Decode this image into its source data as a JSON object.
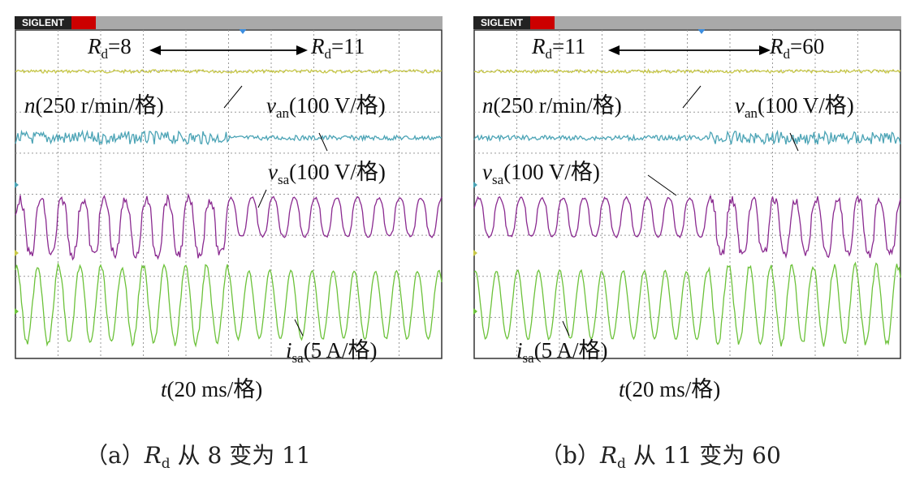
{
  "brand": "SIGLENT",
  "chart_data": [
    {
      "type": "line",
      "panel": "a",
      "caption": {
        "prefix": "（a）",
        "var": "R",
        "sub": "d",
        "text": " 从 8 变为 11"
      },
      "xlabel": {
        "var": "t",
        "text": "(20 ms/格)"
      },
      "annotation": {
        "left": {
          "var": "R",
          "sub": "d",
          "text": "=8"
        },
        "right": {
          "var": "R",
          "sub": "d",
          "text": "=11"
        }
      },
      "x_divisions": 10,
      "y_divisions": 8,
      "grid": true,
      "series": [
        {
          "key": "n",
          "label_var": "n",
          "label_sub": "",
          "label_text": "(250 r/min/格)",
          "color": "#c8c848"
        },
        {
          "key": "van",
          "label_var": "v",
          "label_sub": "an",
          "label_text": "(100 V/格)",
          "color": "#4aa3b5"
        },
        {
          "key": "vsa",
          "label_var": "v",
          "label_sub": "sa",
          "label_text": "(100 V/格)",
          "color": "#8a2a90"
        },
        {
          "key": "isa",
          "label_var": "i",
          "label_sub": "sa",
          "label_text": "(5 A/格)",
          "color": "#6cc23a"
        }
      ],
      "switch_at_div": 5
    },
    {
      "type": "line",
      "panel": "b",
      "caption": {
        "prefix": "（b）",
        "var": "R",
        "sub": "d",
        "text": " 从 11 变为 60"
      },
      "xlabel": {
        "var": "t",
        "text": "(20 ms/格)"
      },
      "annotation": {
        "left": {
          "var": "R",
          "sub": "d",
          "text": "=11"
        },
        "right": {
          "var": "R",
          "sub": "d",
          "text": "=60"
        }
      },
      "x_divisions": 10,
      "y_divisions": 8,
      "grid": true,
      "series": [
        {
          "key": "n",
          "label_var": "n",
          "label_sub": "",
          "label_text": "(250 r/min/格)",
          "color": "#c8c848"
        },
        {
          "key": "van",
          "label_var": "v",
          "label_sub": "an",
          "label_text": "(100 V/格)",
          "color": "#4aa3b5"
        },
        {
          "key": "vsa",
          "label_var": "v",
          "label_sub": "sa",
          "label_text": "(100 V/格)",
          "color": "#8a2a90"
        },
        {
          "key": "isa",
          "label_var": "i",
          "label_sub": "sa",
          "label_text": "(5 A/格)",
          "color": "#6cc23a"
        }
      ],
      "switch_at_div": 5.5
    }
  ]
}
